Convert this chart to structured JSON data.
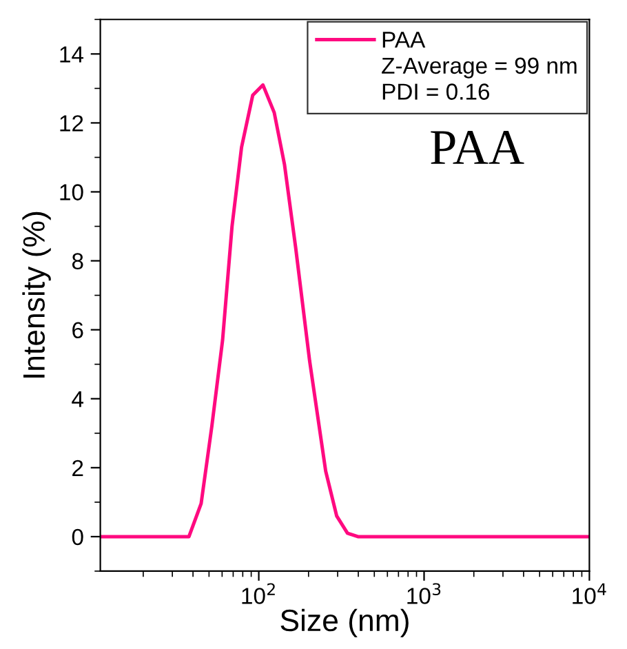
{
  "chart_data": {
    "type": "line",
    "xlabel": "Size (nm)",
    "ylabel": "Intensity (%)",
    "log": "x",
    "xlim": [
      11,
      10000
    ],
    "ylim": [
      -1,
      15
    ],
    "xticks": [
      {
        "value": 100,
        "label": "10$^{2}$"
      },
      {
        "value": 1000,
        "label": "10$^{3}$"
      },
      {
        "value": 10000,
        "label": "10$^{4}$"
      }
    ],
    "yticks": [
      0,
      2,
      4,
      6,
      8,
      10,
      12,
      14
    ],
    "x": [
      11,
      37.8,
      44.8,
      52,
      60.4,
      68.9,
      78.7,
      91.9,
      106,
      124,
      143,
      167,
      203,
      254,
      296,
      344,
      398,
      10000
    ],
    "series": [
      {
        "name": "PAA",
        "color": "#ff0a80",
        "values": [
          0,
          0,
          0.96,
          3.2,
          5.7,
          9.0,
          11.3,
          12.8,
          13.1,
          12.3,
          10.8,
          8.4,
          5.1,
          1.9,
          0.6,
          0.1,
          0,
          0
        ]
      }
    ],
    "legend": "top right",
    "grid": false,
    "marker": "none",
    "line_style": "solid",
    "annotations": [
      "Z-Average = 99 nm",
      "PDI = 0.16",
      "PAA"
    ]
  }
}
